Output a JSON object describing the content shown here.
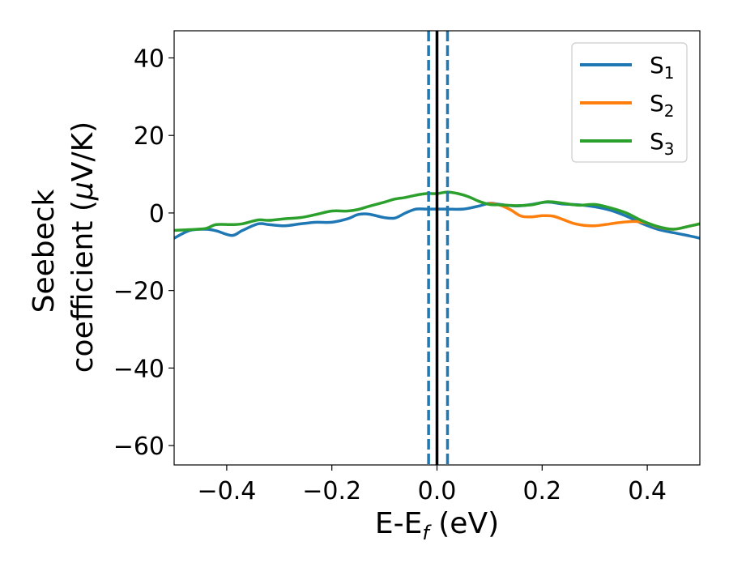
{
  "chart_data": {
    "type": "line",
    "xlabel": {
      "base": "E-E",
      "sub": "f",
      "rest": " (eV)"
    },
    "ylabel": {
      "line1": "Seebeck",
      "line2_prefix": "coefficient  (",
      "mu": "μ",
      "line2_suffix": "V/K)"
    },
    "xlim": [
      -0.5,
      0.5
    ],
    "ylim": [
      -65,
      47
    ],
    "xticks": [
      -0.4,
      -0.2,
      0.0,
      0.2,
      0.4
    ],
    "xtick_labels": [
      "−0.4",
      "−0.2",
      "0.0",
      "0.2",
      "0.4"
    ],
    "yticks": [
      40,
      20,
      0,
      -20,
      -40,
      -60
    ],
    "ytick_labels": [
      "40",
      "20",
      "0",
      "−20",
      "−40",
      "−60"
    ],
    "grid": false,
    "legend_placement": "top-right",
    "vlines": [
      {
        "x": 0.0,
        "style": "solid",
        "color": "#000000"
      },
      {
        "x": -0.016,
        "style": "dashed",
        "color": "#1f77b4"
      },
      {
        "x": 0.02,
        "style": "dashed",
        "color": "#1f77b4"
      }
    ],
    "series": [
      {
        "name": {
          "base": "S",
          "sub": "1"
        },
        "color": "#1f77b4",
        "x": [
          -0.5,
          -0.47,
          -0.44,
          -0.42,
          -0.39,
          -0.37,
          -0.34,
          -0.32,
          -0.29,
          -0.26,
          -0.23,
          -0.2,
          -0.17,
          -0.15,
          -0.13,
          -0.1,
          -0.08,
          -0.06,
          -0.04,
          -0.02,
          0.0,
          0.02,
          0.05,
          0.08,
          0.1,
          0.12,
          0.15,
          0.18,
          0.21,
          0.24,
          0.27,
          0.3,
          0.33,
          0.36,
          0.39,
          0.42,
          0.45,
          0.48,
          0.5
        ],
        "y": [
          -6.5,
          -4.5,
          -4.2,
          -4.6,
          -5.8,
          -4.5,
          -2.8,
          -3.0,
          -3.3,
          -2.8,
          -2.4,
          -2.4,
          -1.5,
          -0.4,
          -0.3,
          -1.2,
          -1.3,
          0.0,
          1.0,
          1.0,
          1.0,
          1.0,
          1.0,
          1.8,
          2.5,
          2.2,
          1.8,
          2.2,
          2.8,
          2.3,
          2.1,
          1.6,
          0.7,
          -0.8,
          -2.7,
          -4.2,
          -5.1,
          -5.9,
          -6.5
        ]
      },
      {
        "name": {
          "base": "S",
          "sub": "2"
        },
        "color": "#ff7f0e",
        "x": [
          0.1,
          0.12,
          0.14,
          0.16,
          0.18,
          0.2,
          0.22,
          0.24,
          0.26,
          0.28,
          0.3,
          0.32,
          0.34,
          0.36,
          0.38,
          0.4,
          0.42,
          0.45,
          0.48,
          0.5
        ],
        "y": [
          2.5,
          2.0,
          0.8,
          -0.8,
          -1.0,
          -0.7,
          -0.8,
          -1.7,
          -2.7,
          -3.2,
          -3.3,
          -3.0,
          -2.6,
          -2.3,
          -2.2,
          -2.6,
          -3.6,
          -4.2,
          -3.4,
          -2.8
        ]
      },
      {
        "name": {
          "base": "S",
          "sub": "3"
        },
        "color": "#2ca02c",
        "x": [
          -0.5,
          -0.47,
          -0.44,
          -0.42,
          -0.39,
          -0.37,
          -0.34,
          -0.32,
          -0.29,
          -0.26,
          -0.23,
          -0.2,
          -0.17,
          -0.15,
          -0.13,
          -0.1,
          -0.08,
          -0.06,
          -0.04,
          -0.02,
          0.0,
          0.02,
          0.04,
          0.06,
          0.08,
          0.1,
          0.12,
          0.15,
          0.18,
          0.21,
          0.24,
          0.27,
          0.3,
          0.33,
          0.36,
          0.39,
          0.42,
          0.45,
          0.48,
          0.5
        ],
        "y": [
          -4.5,
          -4.3,
          -4.0,
          -3.0,
          -3.0,
          -2.8,
          -1.8,
          -1.9,
          -1.5,
          -1.2,
          -0.4,
          0.5,
          0.5,
          0.9,
          1.7,
          2.8,
          3.6,
          4.0,
          4.6,
          5.0,
          5.0,
          5.4,
          5.0,
          4.2,
          3.0,
          2.2,
          2.1,
          1.9,
          2.1,
          2.9,
          2.5,
          2.0,
          2.2,
          1.3,
          0.0,
          -2.0,
          -3.5,
          -4.2,
          -3.4,
          -2.8
        ]
      }
    ]
  }
}
